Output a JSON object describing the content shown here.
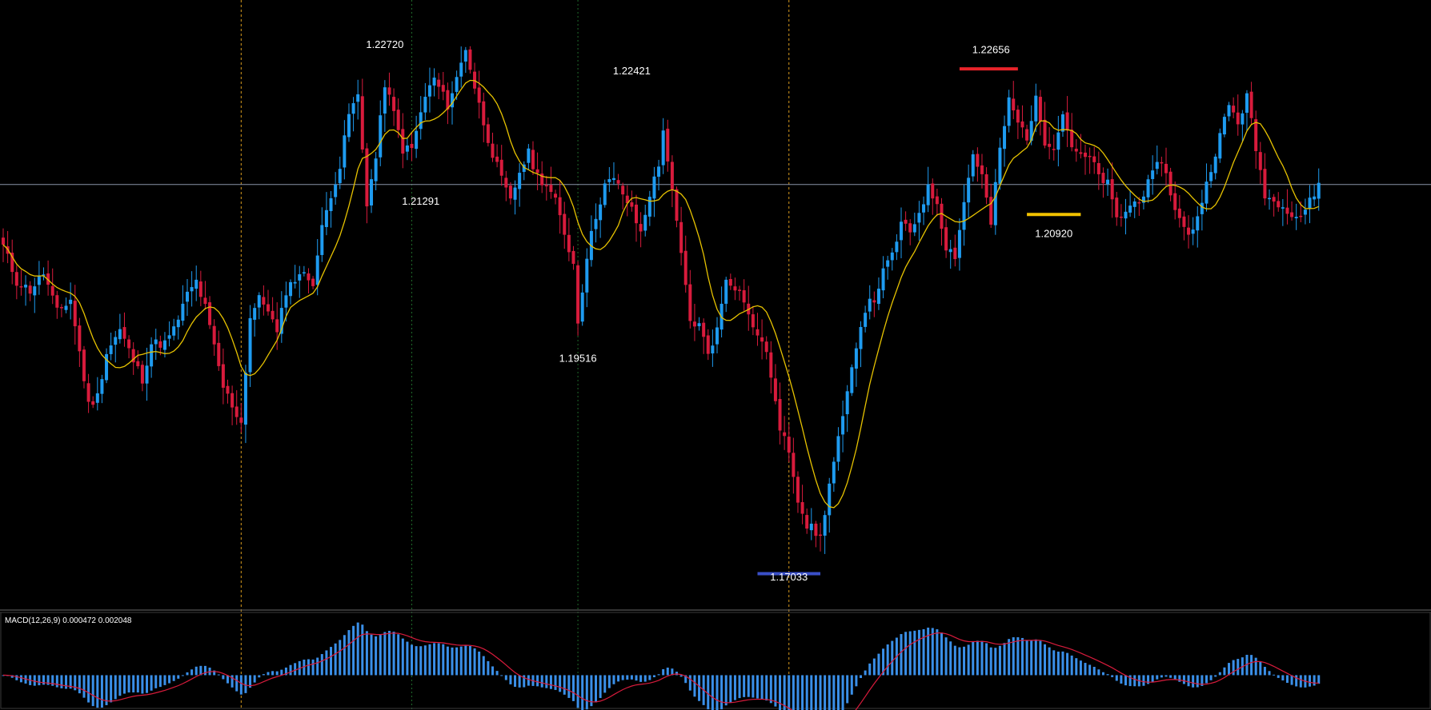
{
  "chart_data": {
    "type": "candlestick",
    "colors": {
      "background": "#000000",
      "bull": "#1e9bf0",
      "bear": "#d81b3c",
      "ma": "#e6c200",
      "macd_hist": "#3a8fe8",
      "macd_signal": "#d81b3c",
      "crosshair": "#8a93a8",
      "period_sep_orange": "#d79a1e",
      "period_sep_green": "#1f6b2a",
      "level_high": "#e8232a",
      "level_low": "#3a4fc8",
      "level_current": "#f2c200",
      "panel_border": "#6a6a6a"
    },
    "price_range": [
      1.1655,
      1.233
    ],
    "crosshair_price": 1.213,
    "annotations": [
      {
        "label": "1.22720",
        "index": 85,
        "price": 1.2272,
        "pos": "above"
      },
      {
        "label": "1.21291",
        "index": 93,
        "price": 1.2129,
        "pos": "below"
      },
      {
        "label": "1.22421",
        "index": 140,
        "price": 1.2242,
        "pos": "above"
      },
      {
        "label": "1.19516",
        "index": 128,
        "price": 1.1951,
        "pos": "below"
      },
      {
        "label": "1.17033",
        "index": 175,
        "price": 1.1703,
        "pos": "below"
      },
      {
        "label": "1.22656",
        "index": 220,
        "price": 1.2266,
        "pos": "above"
      },
      {
        "label": "1.20920",
        "index": 234,
        "price": 1.2092,
        "pos": "below"
      }
    ],
    "levels": [
      {
        "kind": "high",
        "price": 1.2261,
        "from_index": 213,
        "to_index": 226
      },
      {
        "kind": "low",
        "price": 1.1689,
        "from_index": 168,
        "to_index": 182
      },
      {
        "kind": "current",
        "price": 1.2096,
        "from_index": 228,
        "to_index": 240
      }
    ],
    "separators": [
      {
        "index": 53,
        "style": "orange"
      },
      {
        "index": 91,
        "style": "green"
      },
      {
        "index": 128,
        "style": "green"
      },
      {
        "index": 175,
        "style": "orange"
      }
    ],
    "ma_period": 10,
    "anchors": [
      [
        0,
        1.206
      ],
      [
        3,
        1.202
      ],
      [
        6,
        1.201
      ],
      [
        9,
        1.203
      ],
      [
        12,
        1.1985
      ],
      [
        15,
        1.2
      ],
      [
        17,
        1.194
      ],
      [
        19,
        1.188
      ],
      [
        21,
        1.189
      ],
      [
        23,
        1.194
      ],
      [
        26,
        1.1965
      ],
      [
        29,
        1.193
      ],
      [
        31,
        1.191
      ],
      [
        33,
        1.195
      ],
      [
        36,
        1.195
      ],
      [
        38,
        1.1965
      ],
      [
        41,
        1.2005
      ],
      [
        43,
        1.202
      ],
      [
        45,
        1.199
      ],
      [
        47,
        1.1945
      ],
      [
        49,
        1.19
      ],
      [
        51,
        1.188
      ],
      [
        53,
        1.186
      ],
      [
        55,
        1.198
      ],
      [
        57,
        1.2
      ],
      [
        59,
        1.199
      ],
      [
        61,
        1.196
      ],
      [
        63,
        1.201
      ],
      [
        66,
        1.203
      ],
      [
        69,
        1.202
      ],
      [
        71,
        1.208
      ],
      [
        73,
        1.212
      ],
      [
        75,
        1.215
      ],
      [
        77,
        1.221
      ],
      [
        79,
        1.223
      ],
      [
        81,
        1.211
      ],
      [
        83,
        1.216
      ],
      [
        85,
        1.2245
      ],
      [
        87,
        1.221
      ],
      [
        89,
        1.217
      ],
      [
        91,
        1.217
      ],
      [
        94,
        1.223
      ],
      [
        96,
        1.225
      ],
      [
        99,
        1.222
      ],
      [
        101,
        1.225
      ],
      [
        103,
        1.2285
      ],
      [
        105,
        1.224
      ],
      [
        107,
        1.22
      ],
      [
        109,
        1.2165
      ],
      [
        111,
        1.2135
      ],
      [
        113,
        1.211
      ],
      [
        115,
        1.2145
      ],
      [
        117,
        1.2165
      ],
      [
        119,
        1.214
      ],
      [
        121,
        1.213
      ],
      [
        123,
        1.211
      ],
      [
        125,
        1.2075
      ],
      [
        127,
        1.204
      ],
      [
        128,
        1.1975
      ],
      [
        130,
        1.205
      ],
      [
        132,
        1.2095
      ],
      [
        134,
        1.213
      ],
      [
        136,
        1.2135
      ],
      [
        138,
        1.212
      ],
      [
        140,
        1.21
      ],
      [
        142,
        1.2075
      ],
      [
        144,
        1.212
      ],
      [
        146,
        1.215
      ],
      [
        147,
        1.2195
      ],
      [
        149,
        1.212
      ],
      [
        151,
        1.205
      ],
      [
        153,
        1.1975
      ],
      [
        155,
        1.197
      ],
      [
        157,
        1.194
      ],
      [
        159,
        1.1965
      ],
      [
        161,
        1.2025
      ],
      [
        163,
        1.2015
      ],
      [
        165,
        1.2
      ],
      [
        167,
        1.1965
      ],
      [
        169,
        1.1955
      ],
      [
        171,
        1.1915
      ],
      [
        173,
        1.185
      ],
      [
        175,
        1.183
      ],
      [
        177,
        1.1775
      ],
      [
        179,
        1.1745
      ],
      [
        181,
        1.1735
      ],
      [
        182,
        1.173
      ],
      [
        184,
        1.179
      ],
      [
        186,
        1.184
      ],
      [
        188,
        1.189
      ],
      [
        190,
        1.195
      ],
      [
        192,
        1.199
      ],
      [
        194,
        1.2
      ],
      [
        196,
        1.203
      ],
      [
        198,
        1.205
      ],
      [
        200,
        1.2085
      ],
      [
        202,
        1.2075
      ],
      [
        204,
        1.21
      ],
      [
        206,
        1.2125
      ],
      [
        208,
        1.211
      ],
      [
        210,
        1.206
      ],
      [
        212,
        1.205
      ],
      [
        214,
        1.211
      ],
      [
        216,
        1.2165
      ],
      [
        218,
        1.214
      ],
      [
        220,
        1.2085
      ],
      [
        222,
        1.217
      ],
      [
        224,
        1.2225
      ],
      [
        226,
        1.22
      ],
      [
        228,
        1.2185
      ],
      [
        230,
        1.2225
      ],
      [
        232,
        1.218
      ],
      [
        234,
        1.2175
      ],
      [
        236,
        1.221
      ],
      [
        238,
        1.2175
      ],
      [
        240,
        1.216
      ],
      [
        242,
        1.216
      ],
      [
        244,
        1.214
      ],
      [
        246,
        1.213
      ],
      [
        248,
        1.209
      ],
      [
        250,
        1.21
      ],
      [
        252,
        1.211
      ],
      [
        254,
        1.212
      ],
      [
        256,
        1.214
      ],
      [
        258,
        1.216
      ],
      [
        260,
        1.212
      ],
      [
        262,
        1.209
      ],
      [
        264,
        1.207
      ],
      [
        266,
        1.2095
      ],
      [
        268,
        1.213
      ],
      [
        269,
        1.215
      ],
      [
        271,
        1.2185
      ],
      [
        273,
        1.222
      ],
      [
        275,
        1.22
      ],
      [
        277,
        1.223
      ],
      [
        279,
        1.217
      ],
      [
        281,
        1.212
      ],
      [
        283,
        1.211
      ],
      [
        285,
        1.211
      ],
      [
        287,
        1.2095
      ],
      [
        289,
        1.2095
      ],
      [
        291,
        1.211
      ],
      [
        293,
        1.213
      ]
    ],
    "macd": {
      "label": "MACD(12,26,9) 0.000472 0.002048",
      "range": [
        -0.0038,
        0.006
      ]
    }
  }
}
